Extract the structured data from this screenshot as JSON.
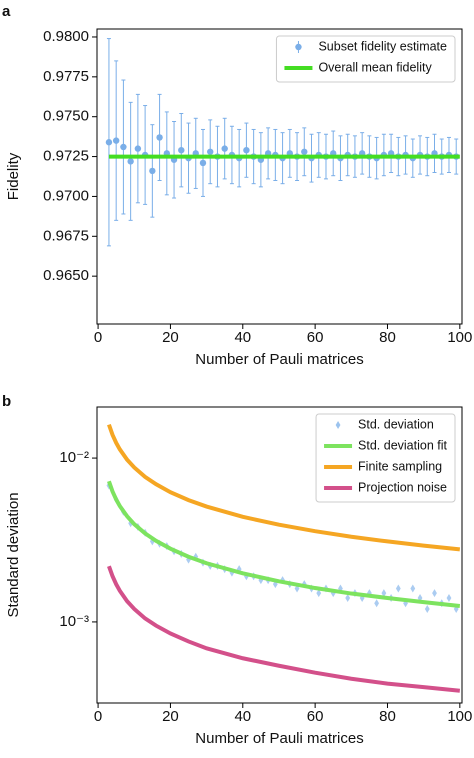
{
  "chart_data": [
    {
      "type": "errorbar",
      "label": "a",
      "xlabel": "Number of Pauli matrices",
      "ylabel": "Fidelity",
      "xlim": [
        -0.3,
        100.6
      ],
      "xticks": [
        0,
        20,
        40,
        60,
        80,
        100
      ],
      "ylim": [
        0.962,
        0.9805
      ],
      "yticks": [
        {
          "value": 0.965,
          "label": "0.9650"
        },
        {
          "value": 0.9675,
          "label": "0.9675"
        },
        {
          "value": 0.97,
          "label": "0.9700"
        },
        {
          "value": 0.9725,
          "label": "0.9725"
        },
        {
          "value": 0.975,
          "label": "0.9750"
        },
        {
          "value": 0.9775,
          "label": "0.9775"
        },
        {
          "value": 0.98,
          "label": "0.9800"
        }
      ],
      "legend": "upper right",
      "series": [
        {
          "name": "Subset fidelity estimate",
          "color": "#7aaee8",
          "marker": "o",
          "x": [
            3,
            5,
            7,
            9,
            11,
            13,
            15,
            17,
            19,
            21,
            23,
            25,
            27,
            29,
            31,
            33,
            35,
            37,
            39,
            41,
            43,
            45,
            47,
            49,
            51,
            53,
            55,
            57,
            59,
            61,
            63,
            65,
            67,
            69,
            71,
            73,
            75,
            77,
            79,
            81,
            83,
            85,
            87,
            89,
            91,
            93,
            95,
            97,
            99
          ],
          "values": [
            0.9734,
            0.9735,
            0.9731,
            0.9722,
            0.973,
            0.9726,
            0.9716,
            0.9737,
            0.9727,
            0.9723,
            0.9729,
            0.9724,
            0.9727,
            0.9721,
            0.9728,
            0.9725,
            0.973,
            0.9726,
            0.9724,
            0.9729,
            0.9725,
            0.9723,
            0.9727,
            0.9726,
            0.9724,
            0.9727,
            0.9725,
            0.9728,
            0.9724,
            0.9726,
            0.9725,
            0.9727,
            0.9724,
            0.9726,
            0.9725,
            0.9727,
            0.9725,
            0.9724,
            0.9726,
            0.9727,
            0.9725,
            0.9726,
            0.9724,
            0.9726,
            0.9725,
            0.9727,
            0.9725,
            0.9726,
            0.9725
          ],
          "errors": [
            0.0065,
            0.005,
            0.0042,
            0.0037,
            0.0034,
            0.0031,
            0.0029,
            0.0027,
            0.0026,
            0.0024,
            0.0023,
            0.0022,
            0.0022,
            0.0021,
            0.002,
            0.0019,
            0.0019,
            0.0018,
            0.0018,
            0.0017,
            0.0017,
            0.0017,
            0.0016,
            0.0016,
            0.0016,
            0.0015,
            0.0015,
            0.0015,
            0.0015,
            0.0014,
            0.0014,
            0.0014,
            0.0014,
            0.0013,
            0.0013,
            0.0013,
            0.0013,
            0.0013,
            0.0013,
            0.0012,
            0.0012,
            0.0012,
            0.0012,
            0.0012,
            0.0012,
            0.0012,
            0.0011,
            0.0011,
            0.0011
          ]
        },
        {
          "name": "Overall mean fidelity",
          "color": "#44dd22",
          "x": [
            3,
            100
          ],
          "values": [
            0.9725,
            0.9725
          ]
        }
      ]
    },
    {
      "type": "scatter",
      "label": "b",
      "xlabel": "Number of Pauli matrices",
      "ylabel": "Standard deviation",
      "xlim": [
        -0.3,
        100.6
      ],
      "xticks": [
        0,
        20,
        40,
        60,
        80,
        100
      ],
      "ylim": [
        0.00032,
        0.0205
      ],
      "log_y": true,
      "yticks": [
        {
          "value": 0.001,
          "label": "10⁻³"
        },
        {
          "value": 0.01,
          "label": "10⁻²"
        }
      ],
      "legend": "upper right",
      "series": [
        {
          "name": "Std. deviation",
          "color": "#9cc3ee",
          "marker": "d",
          "x": [
            3,
            5,
            7,
            9,
            11,
            13,
            15,
            17,
            19,
            21,
            23,
            25,
            27,
            29,
            31,
            33,
            35,
            37,
            39,
            41,
            43,
            45,
            47,
            49,
            51,
            53,
            55,
            57,
            59,
            61,
            63,
            65,
            67,
            69,
            71,
            73,
            75,
            77,
            79,
            81,
            83,
            85,
            87,
            89,
            91,
            93,
            95,
            97,
            99
          ],
          "values": [
            0.0068,
            0.0056,
            0.0047,
            0.004,
            0.0038,
            0.0035,
            0.0031,
            0.003,
            0.0029,
            0.0027,
            0.0026,
            0.0024,
            0.0025,
            0.0023,
            0.0022,
            0.0022,
            0.0021,
            0.002,
            0.0021,
            0.0019,
            0.0019,
            0.0018,
            0.0018,
            0.0017,
            0.0018,
            0.0017,
            0.0016,
            0.0017,
            0.0016,
            0.0015,
            0.0016,
            0.0015,
            0.0016,
            0.0014,
            0.0015,
            0.0014,
            0.0015,
            0.0013,
            0.0015,
            0.0014,
            0.0016,
            0.0013,
            0.0016,
            0.0014,
            0.0012,
            0.0015,
            0.0013,
            0.0014,
            0.0012
          ]
        },
        {
          "name": "Std. deviation fit",
          "color": "#7de35f",
          "x": [
            3,
            4,
            5,
            6,
            8,
            10,
            13,
            16,
            20,
            25,
            30,
            40,
            50,
            60,
            70,
            80,
            90,
            100
          ],
          "values": [
            0.00722,
            0.00625,
            0.00559,
            0.0051,
            0.00442,
            0.00395,
            0.00347,
            0.00313,
            0.0028,
            0.0025,
            0.00228,
            0.00198,
            0.00177,
            0.00161,
            0.00149,
            0.0014,
            0.00132,
            0.00125
          ]
        },
        {
          "name": "Finite sampling",
          "color": "#f5a623",
          "x": [
            3,
            4,
            5,
            6,
            8,
            10,
            13,
            16,
            20,
            25,
            30,
            40,
            50,
            60,
            70,
            80,
            90,
            100
          ],
          "values": [
            0.016,
            0.01385,
            0.01239,
            0.01131,
            0.00979,
            0.00876,
            0.00768,
            0.00693,
            0.00619,
            0.00554,
            0.00506,
            0.00438,
            0.00392,
            0.00358,
            0.00331,
            0.0031,
            0.00292,
            0.00277
          ]
        },
        {
          "name": "Projection noise",
          "color": "#d3508a",
          "x": [
            3,
            4,
            5,
            6,
            8,
            10,
            13,
            16,
            20,
            25,
            30,
            40,
            50,
            60,
            70,
            80,
            90,
            100
          ],
          "values": [
            0.00219,
            0.0019,
            0.0017,
            0.00155,
            0.00134,
            0.0012,
            0.00105,
            0.00095,
            0.00085,
            0.00076,
            0.00069,
            0.0006,
            0.00054,
            0.00049,
            0.00045,
            0.00042,
            0.0004,
            0.00038
          ]
        }
      ]
    }
  ]
}
